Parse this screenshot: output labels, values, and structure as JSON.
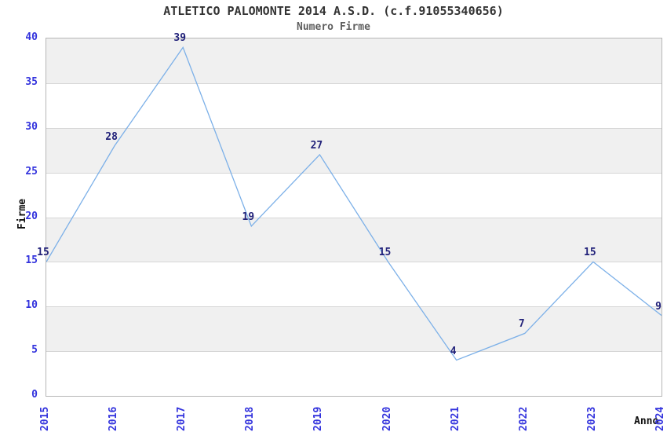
{
  "chart_data": {
    "type": "line",
    "title": "ATLETICO PALOMONTE 2014 A.S.D. (c.f.91055340656)",
    "subtitle": "Numero Firme",
    "xlabel": "Anno",
    "ylabel": "Firme",
    "categories": [
      "2015",
      "2016",
      "2017",
      "2018",
      "2019",
      "2020",
      "2021",
      "2022",
      "2023",
      "2024"
    ],
    "series": [
      {
        "name": "Numero Firme",
        "values": [
          15,
          28,
          39,
          19,
          27,
          15,
          4,
          7,
          15,
          9
        ]
      }
    ],
    "ylim": [
      0,
      40
    ],
    "yticks": [
      0,
      5,
      10,
      15,
      20,
      25,
      30,
      35,
      40
    ],
    "show_value_labels": true,
    "legend": null,
    "grid": "horizontal-bands",
    "colors": {
      "line": "#7CB0E8",
      "axis_tick_label": "#3333DD",
      "value_label": "#22227A",
      "title": "#333333",
      "subtitle": "#5E5E5E",
      "axis_title": "#111111",
      "band_gray": "#F0F0F0",
      "gridline": "#D6D6D6",
      "plot_border": "#B6B6B6",
      "background": "#FFFFFF"
    }
  }
}
